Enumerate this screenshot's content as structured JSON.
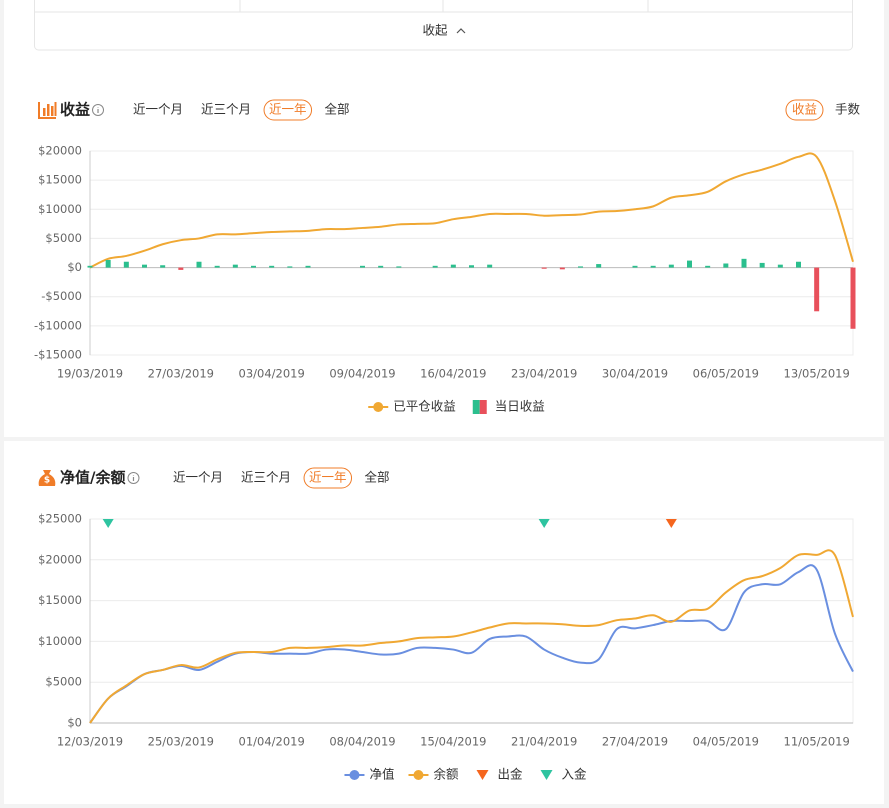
{
  "collapse_label": "收起",
  "chart_data": [
    {
      "type": "combo",
      "title": "收益",
      "tabs": [
        "近一个月",
        "近三个月",
        "近一年",
        "全部"
      ],
      "active_tab": 2,
      "toggles": [
        "收益",
        "手数"
      ],
      "active_toggle": 0,
      "categories": [
        "19/03/2019",
        null,
        null,
        null,
        null,
        "27/03/2019",
        null,
        null,
        null,
        null,
        "03/04/2019",
        null,
        null,
        null,
        null,
        "09/04/2019",
        null,
        null,
        null,
        null,
        "16/04/2019",
        null,
        null,
        null,
        null,
        "23/04/2019",
        null,
        null,
        null,
        null,
        "30/04/2019",
        null,
        null,
        null,
        null,
        "06/05/2019",
        null,
        null,
        null,
        null,
        "13/05/2019",
        null,
        null
      ],
      "series": [
        {
          "name": "已平仓收益",
          "type": "line",
          "color": "#f0a833",
          "values": [
            0,
            1500,
            2000,
            2900,
            4000,
            4700,
            5000,
            5700,
            5700,
            5900,
            6100,
            6200,
            6300,
            6600,
            6600,
            6800,
            7000,
            7400,
            7500,
            7600,
            8300,
            8700,
            9200,
            9200,
            9200,
            8900,
            9000,
            9100,
            9600,
            9700,
            10000,
            10500,
            12000,
            12400,
            13000,
            14800,
            16000,
            16800,
            17800,
            19000,
            19000,
            11500,
            1000
          ]
        },
        {
          "name": "当日收益",
          "type": "bar",
          "color": "#2bbf8e",
          "negative_color": "#e8505b",
          "values": [
            300,
            1300,
            1000,
            500,
            400,
            -400,
            1000,
            300,
            500,
            300,
            300,
            200,
            300,
            0,
            0,
            300,
            300,
            200,
            0,
            300,
            500,
            400,
            500,
            0,
            0,
            -200,
            -300,
            200,
            600,
            0,
            300,
            300,
            500,
            1200,
            300,
            700,
            1500,
            800,
            500,
            1000,
            -7500,
            0,
            -10500
          ]
        }
      ],
      "ylim": [
        -15000,
        20000
      ],
      "yticks": [
        {
          "value": -15000,
          "label": "-$15000"
        },
        {
          "value": -10000,
          "label": "-$10000"
        },
        {
          "value": -5000,
          "label": "-$5000"
        },
        {
          "value": 0,
          "label": "$0"
        },
        {
          "value": 5000,
          "label": "$5000"
        },
        {
          "value": 10000,
          "label": "$10000"
        },
        {
          "value": 15000,
          "label": "$15000"
        },
        {
          "value": 20000,
          "label": "$20000"
        }
      ],
      "grid": true
    },
    {
      "type": "line",
      "title": "净值/余额",
      "tabs": [
        "近一个月",
        "近三个月",
        "近一年",
        "全部"
      ],
      "active_tab": 2,
      "categories": [
        "12/03/2019",
        null,
        null,
        null,
        null,
        "25/03/2019",
        null,
        null,
        null,
        null,
        "01/04/2019",
        null,
        null,
        null,
        null,
        "08/04/2019",
        null,
        null,
        null,
        null,
        "15/04/2019",
        null,
        null,
        null,
        null,
        "21/04/2019",
        null,
        null,
        null,
        null,
        "27/04/2019",
        null,
        null,
        null,
        null,
        "04/05/2019",
        null,
        null,
        null,
        null,
        "11/05/2019",
        null,
        null
      ],
      "series": [
        {
          "name": "净值",
          "type": "line",
          "color": "#6a8fe0",
          "values": [
            0,
            3000,
            4500,
            6000,
            6500,
            7000,
            6500,
            7500,
            8500,
            8700,
            8500,
            8500,
            8500,
            9000,
            9000,
            8700,
            8400,
            8500,
            9200,
            9200,
            9000,
            8600,
            10300,
            10600,
            10600,
            9000,
            8000,
            7400,
            7800,
            11500,
            11600,
            12000,
            12500,
            12500,
            12500,
            11500,
            16000,
            17000,
            17000,
            18500,
            18800,
            11000,
            6300
          ]
        },
        {
          "name": "余额",
          "type": "line",
          "color": "#f0a833",
          "values": [
            0,
            3000,
            4600,
            6000,
            6500,
            7100,
            6800,
            7800,
            8600,
            8700,
            8700,
            9200,
            9200,
            9300,
            9500,
            9500,
            9800,
            10000,
            10400,
            10500,
            10600,
            11100,
            11700,
            12200,
            12200,
            12200,
            12100,
            11900,
            12000,
            12600,
            12800,
            13200,
            12400,
            13800,
            14000,
            16000,
            17500,
            18000,
            19000,
            20600,
            20600,
            20600,
            13000
          ]
        },
        {
          "name": "出金",
          "type": "marker",
          "color": "#f5661e",
          "values": [
            null,
            null,
            null,
            null,
            null,
            null,
            null,
            null,
            null,
            null,
            null,
            null,
            null,
            null,
            null,
            null,
            null,
            null,
            null,
            null,
            null,
            null,
            null,
            null,
            null,
            null,
            null,
            null,
            null,
            null,
            null,
            null,
            25000,
            null,
            null,
            null,
            null,
            null,
            null,
            null,
            null,
            null,
            null
          ]
        },
        {
          "name": "入金",
          "type": "marker",
          "color": "#2ec4a0",
          "values": [
            null,
            25000,
            null,
            null,
            null,
            null,
            null,
            null,
            null,
            null,
            null,
            null,
            null,
            null,
            null,
            null,
            null,
            null,
            null,
            null,
            null,
            null,
            null,
            null,
            null,
            25000,
            null,
            null,
            null,
            null,
            null,
            null,
            null,
            null,
            null,
            null,
            null,
            null,
            null,
            null,
            null,
            null,
            null
          ]
        }
      ],
      "ylim": [
        0,
        25000
      ],
      "yticks": [
        {
          "value": 0,
          "label": "$0"
        },
        {
          "value": 5000,
          "label": "$5000"
        },
        {
          "value": 10000,
          "label": "$10000"
        },
        {
          "value": 15000,
          "label": "$15000"
        },
        {
          "value": 20000,
          "label": "$20000"
        },
        {
          "value": 25000,
          "label": "$25000"
        }
      ],
      "grid": true
    }
  ]
}
